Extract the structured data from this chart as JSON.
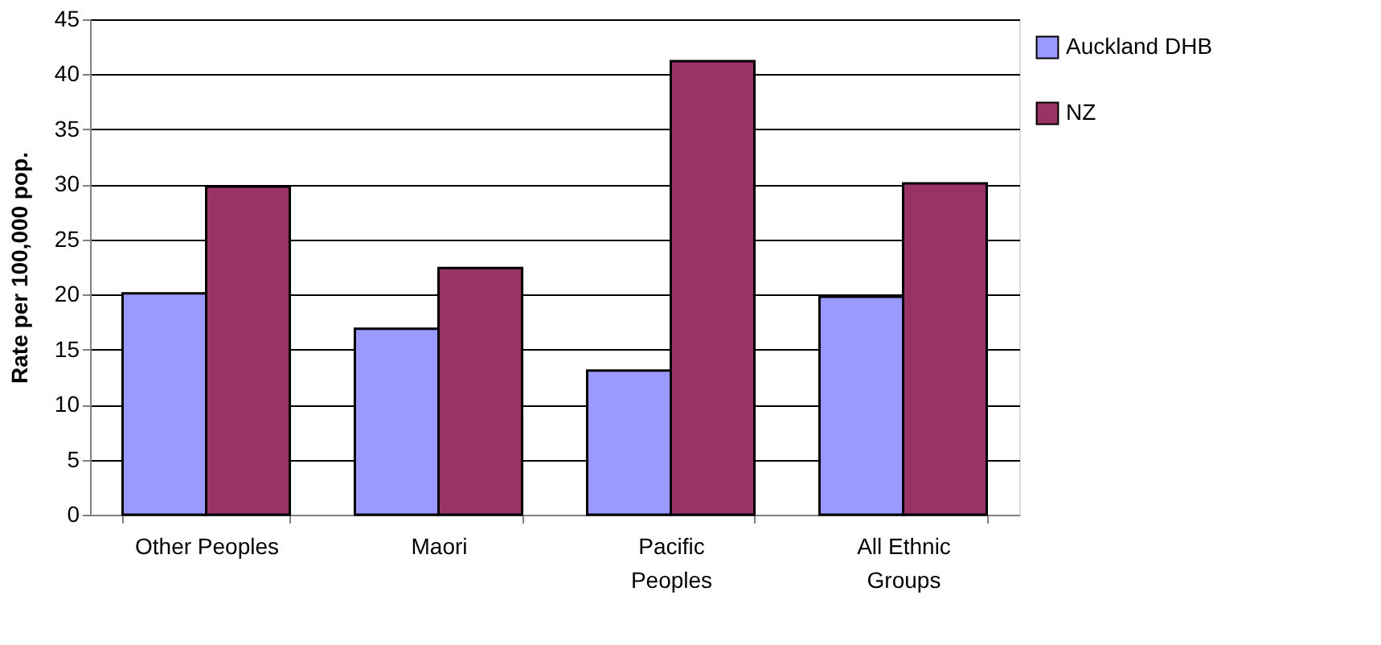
{
  "chart_data": {
    "type": "bar",
    "ylabel": "Rate per 100,000 pop.",
    "categories": [
      "Other Peoples",
      "Maori",
      "Pacific Peoples",
      "All Ethnic Groups"
    ],
    "series": [
      {
        "name": "Auckland DHB",
        "color": "#9999ff",
        "values": [
          20.1,
          16.9,
          13.1,
          19.8
        ]
      },
      {
        "name": "NZ",
        "color": "#993366",
        "values": [
          29.8,
          22.4,
          41.2,
          30.1
        ]
      }
    ],
    "ylim": [
      0,
      45
    ],
    "yticks": [
      0,
      5,
      10,
      15,
      20,
      25,
      30,
      35,
      40,
      45
    ],
    "grid": "y",
    "legend": "right"
  }
}
